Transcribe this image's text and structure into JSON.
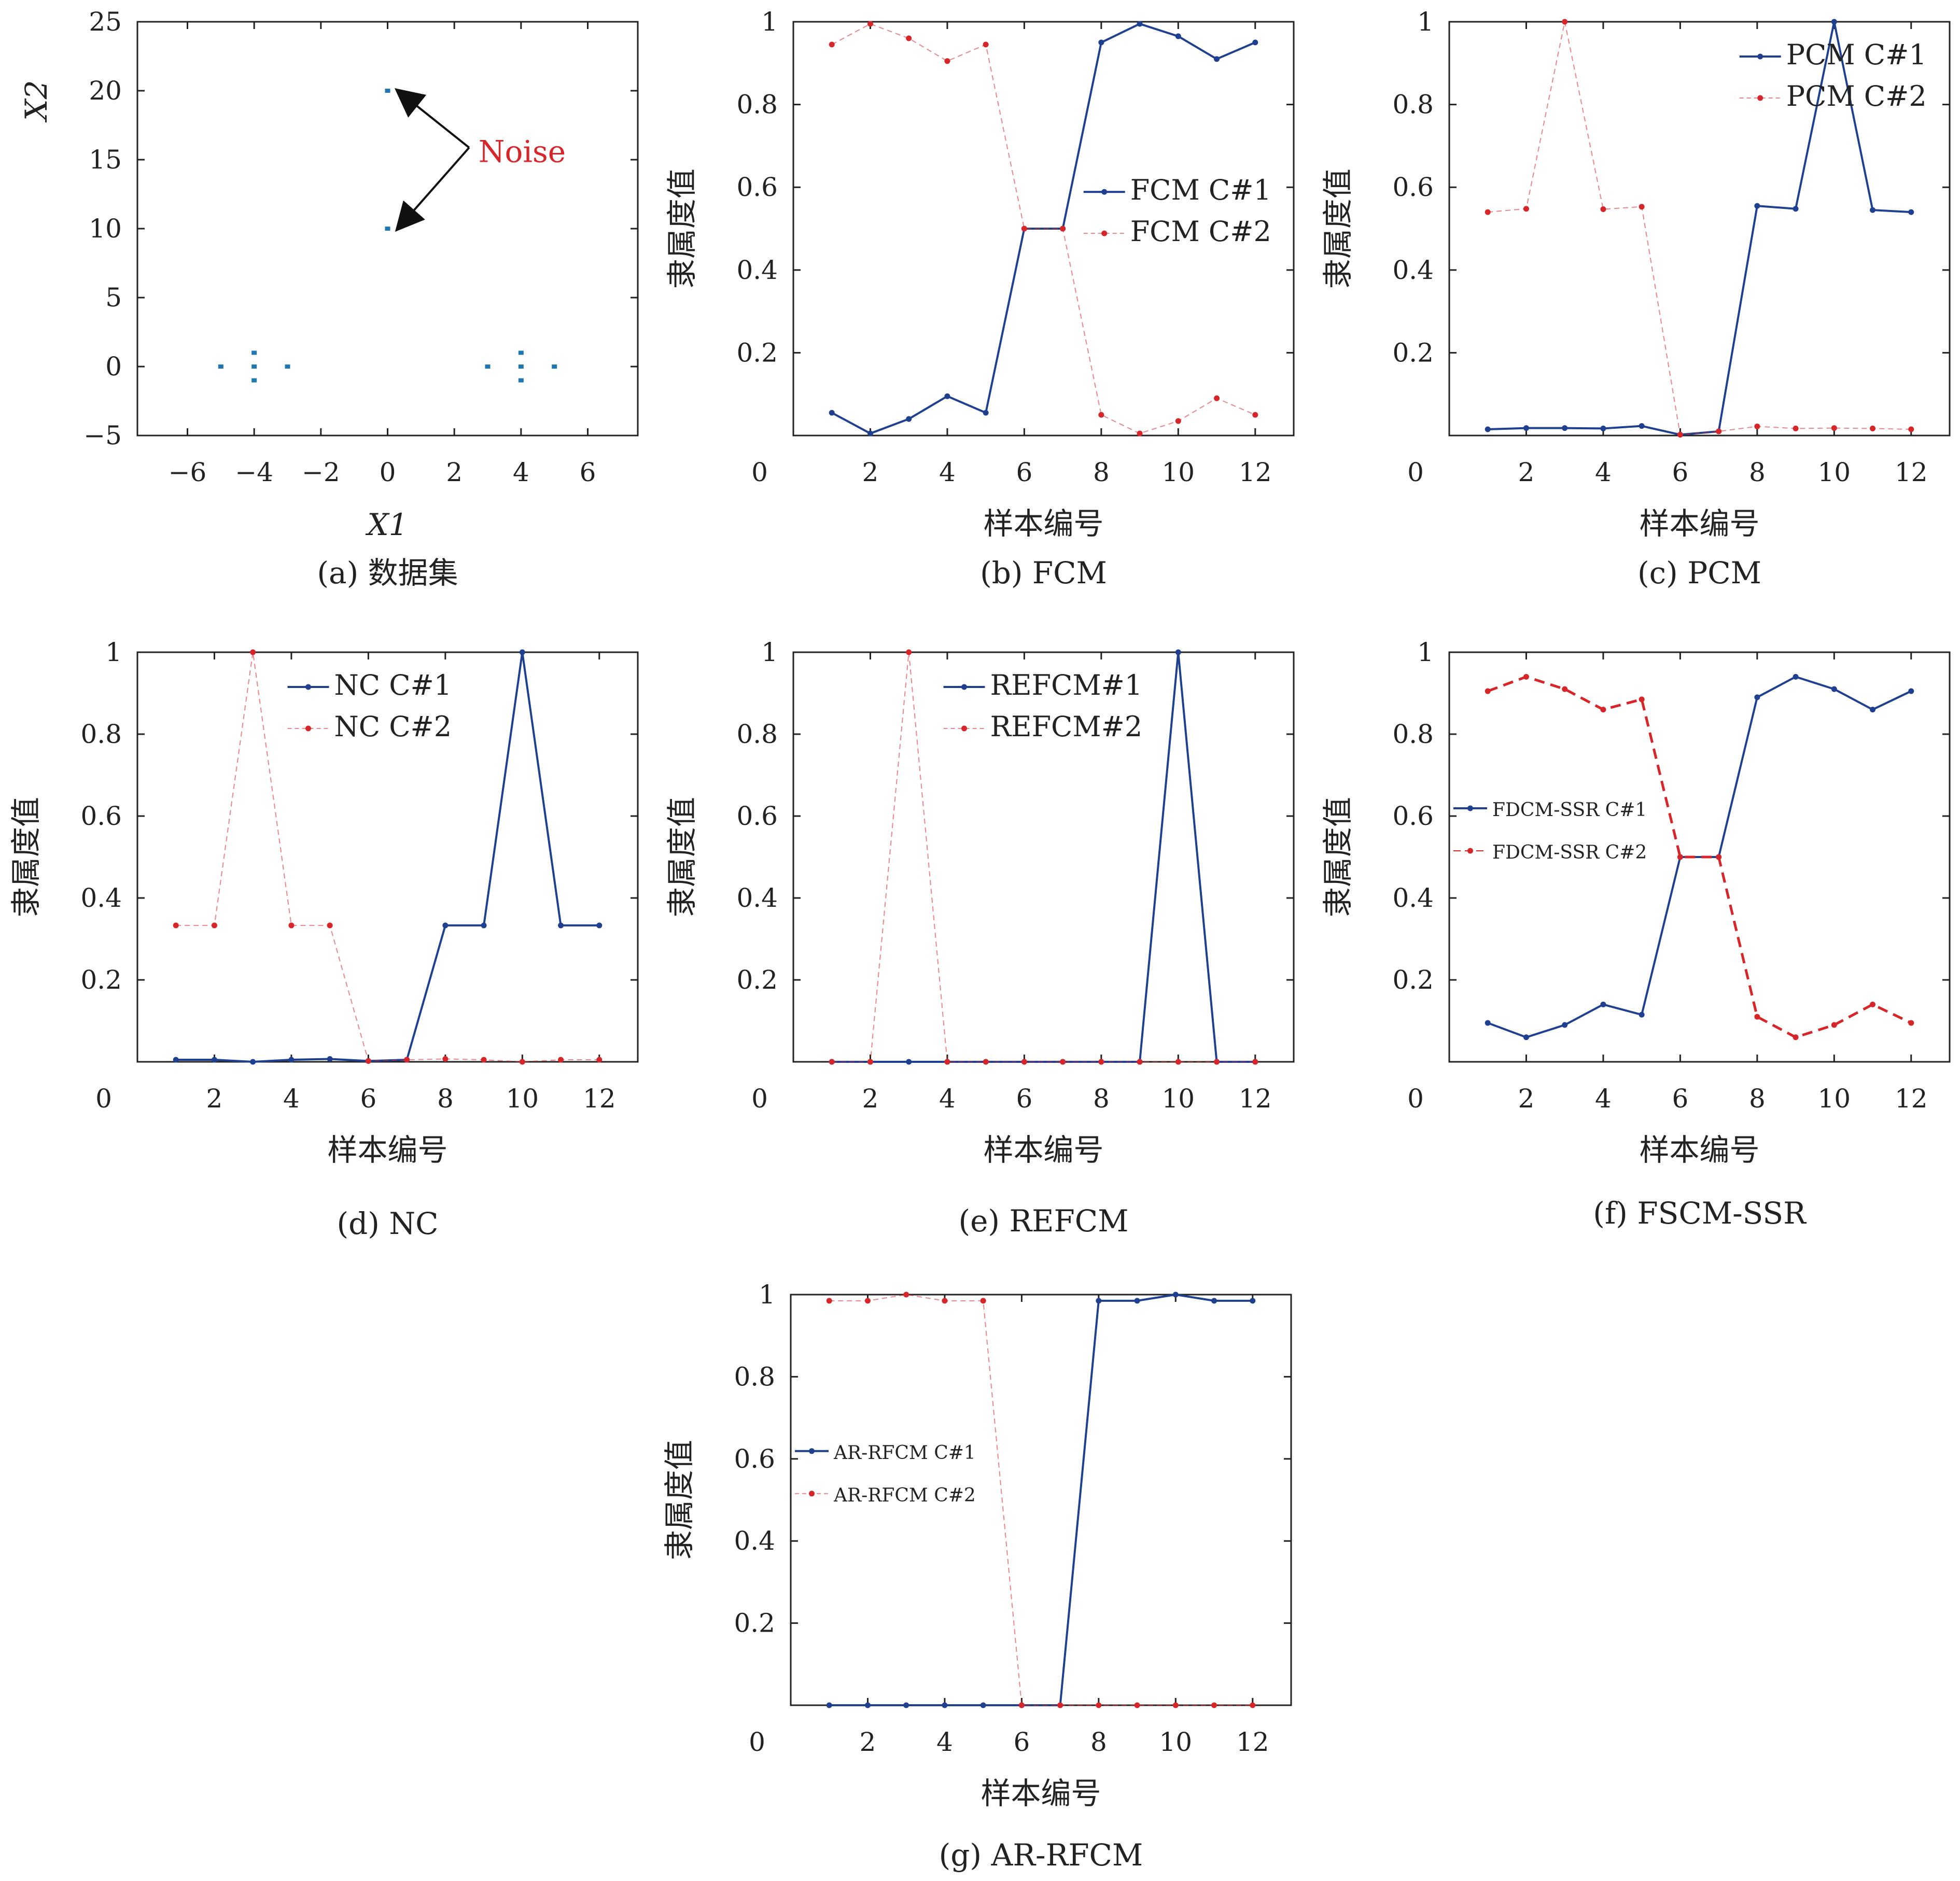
{
  "colors": {
    "c1": "#1f3f8f",
    "c2": "#d6262a",
    "scatter": "#1f77b4"
  },
  "chart_data": [
    {
      "id": "a",
      "type": "scatter",
      "caption": "(a) 数据集",
      "xlabel": "X1",
      "ylabel": "X2",
      "xlim": [
        -7.5,
        7.5
      ],
      "ylim": [
        -5,
        25
      ],
      "xticks": [
        -6,
        -4,
        -2,
        0,
        2,
        4,
        6
      ],
      "yticks": [
        -5,
        0,
        5,
        10,
        15,
        20,
        25
      ],
      "points": [
        [
          -5,
          0
        ],
        [
          -4,
          -1
        ],
        [
          -4,
          0
        ],
        [
          -4,
          1
        ],
        [
          -3,
          0
        ],
        [
          3,
          0
        ],
        [
          4,
          -1
        ],
        [
          4,
          0
        ],
        [
          4,
          1
        ],
        [
          5,
          0
        ],
        [
          0,
          10
        ],
        [
          0,
          20
        ]
      ],
      "annotation": {
        "text": "Noise",
        "anchor": [
          2.6,
          15.5
        ],
        "targets": [
          [
            0.15,
            20
          ],
          [
            0.15,
            10
          ]
        ]
      }
    },
    {
      "id": "b",
      "type": "line",
      "caption": "(b) FCM",
      "xlabel": "样本编号",
      "ylabel": "隶属度值",
      "xlim": [
        0,
        13
      ],
      "ylim": [
        0,
        1
      ],
      "xticks": [
        0,
        2,
        4,
        6,
        8,
        10,
        12
      ],
      "yticks": [
        0.2,
        0.4,
        0.6,
        0.8,
        1.0
      ],
      "legend_pos": "center-right",
      "legend_size": "normal",
      "x": [
        1,
        2,
        3,
        4,
        5,
        6,
        7,
        8,
        9,
        10,
        11,
        12
      ],
      "series": [
        {
          "name": "FCM C#1",
          "style": "solid",
          "values": [
            0.055,
            0.005,
            0.04,
            0.095,
            0.055,
            0.5,
            0.5,
            0.95,
            0.995,
            0.965,
            0.91,
            0.95
          ]
        },
        {
          "name": "FCM C#2",
          "style": "thin-dashed",
          "values": [
            0.945,
            0.995,
            0.96,
            0.905,
            0.945,
            0.5,
            0.5,
            0.05,
            0.005,
            0.035,
            0.09,
            0.05
          ]
        }
      ]
    },
    {
      "id": "c",
      "type": "line",
      "caption": "(c) PCM",
      "xlabel": "样本编号",
      "ylabel": "隶属度值",
      "xlim": [
        0,
        13
      ],
      "ylim": [
        0,
        1
      ],
      "xticks": [
        0,
        2,
        4,
        6,
        8,
        10,
        12
      ],
      "yticks": [
        0.2,
        0.4,
        0.6,
        0.8,
        1.0
      ],
      "legend_pos": "top-right",
      "legend_size": "normal",
      "x": [
        1,
        2,
        3,
        4,
        5,
        6,
        7,
        8,
        9,
        10,
        11,
        12
      ],
      "series": [
        {
          "name": "PCM C#1",
          "style": "solid",
          "values": [
            0.015,
            0.018,
            0.018,
            0.017,
            0.023,
            0.002,
            0.01,
            0.555,
            0.548,
            1.0,
            0.545,
            0.54
          ]
        },
        {
          "name": "PCM C#2",
          "style": "thin-dashed",
          "values": [
            0.54,
            0.548,
            1.0,
            0.547,
            0.553,
            0.002,
            0.01,
            0.022,
            0.017,
            0.018,
            0.017,
            0.015
          ]
        }
      ]
    },
    {
      "id": "d",
      "type": "line",
      "caption": "(d) NC",
      "xlabel": "样本编号",
      "ylabel": "隶属度值",
      "xlim": [
        0,
        13
      ],
      "ylim": [
        0,
        1
      ],
      "xticks": [
        0,
        2,
        4,
        6,
        8,
        10,
        12
      ],
      "yticks": [
        0.2,
        0.4,
        0.6,
        0.8,
        1.0
      ],
      "legend_pos": "top-center",
      "legend_size": "normal",
      "x": [
        1,
        2,
        3,
        4,
        5,
        6,
        7,
        8,
        9,
        10,
        11,
        12
      ],
      "series": [
        {
          "name": "NC C#1",
          "style": "solid",
          "values": [
            0.005,
            0.005,
            0.0,
            0.005,
            0.007,
            0.002,
            0.005,
            0.333,
            0.333,
            1.0,
            0.333,
            0.333
          ]
        },
        {
          "name": "NC C#2",
          "style": "thin-dashed",
          "values": [
            0.333,
            0.333,
            1.0,
            0.333,
            0.333,
            0.002,
            0.005,
            0.007,
            0.005,
            0.0,
            0.005,
            0.005
          ]
        }
      ]
    },
    {
      "id": "e",
      "type": "line",
      "caption": "(e) REFCM",
      "xlabel": "样本编号",
      "ylabel": "隶属度值",
      "xlim": [
        0,
        13
      ],
      "ylim": [
        0,
        1
      ],
      "xticks": [
        0,
        2,
        4,
        6,
        8,
        10,
        12
      ],
      "yticks": [
        0.2,
        0.4,
        0.6,
        0.8,
        1.0
      ],
      "legend_pos": "top-center",
      "legend_size": "normal",
      "x": [
        1,
        2,
        3,
        4,
        5,
        6,
        7,
        8,
        9,
        10,
        11,
        12
      ],
      "series": [
        {
          "name": "REFCM#1",
          "style": "solid",
          "values": [
            0,
            0,
            0,
            0,
            0,
            0,
            0,
            0,
            0,
            1.0,
            0,
            0
          ]
        },
        {
          "name": "REFCM#2",
          "style": "thin-dashed",
          "values": [
            0,
            0,
            1.0,
            0,
            0,
            0,
            0,
            0,
            0,
            0,
            0,
            0
          ]
        }
      ]
    },
    {
      "id": "f",
      "type": "line",
      "caption": "(f) FSCM-SSR",
      "xlabel": "样本编号",
      "ylabel": "隶属度值",
      "xlim": [
        0,
        13
      ],
      "ylim": [
        0,
        1
      ],
      "xticks": [
        0,
        2,
        4,
        6,
        8,
        10,
        12
      ],
      "yticks": [
        0.2,
        0.4,
        0.6,
        0.8,
        1.0
      ],
      "legend_pos": "center-left",
      "legend_size": "small",
      "x": [
        1,
        2,
        3,
        4,
        5,
        6,
        7,
        8,
        9,
        10,
        11,
        12
      ],
      "series": [
        {
          "name": "FDCM-SSR C#1",
          "style": "solid",
          "values": [
            0.095,
            0.06,
            0.09,
            0.14,
            0.115,
            0.5,
            0.5,
            0.89,
            0.94,
            0.91,
            0.86,
            0.905
          ]
        },
        {
          "name": "FDCM-SSR C#2",
          "style": "thick-dashed",
          "values": [
            0.905,
            0.94,
            0.91,
            0.86,
            0.885,
            0.5,
            0.5,
            0.11,
            0.06,
            0.09,
            0.14,
            0.095
          ]
        }
      ]
    },
    {
      "id": "g",
      "type": "line",
      "caption": "(g) AR-RFCM",
      "xlabel": "样本编号",
      "ylabel": "隶属度值",
      "xlim": [
        0,
        13
      ],
      "ylim": [
        0,
        1
      ],
      "xticks": [
        0,
        2,
        4,
        6,
        8,
        10,
        12
      ],
      "yticks": [
        0.2,
        0.4,
        0.6,
        0.8,
        1.0
      ],
      "legend_pos": "center-left",
      "legend_size": "small",
      "x": [
        1,
        2,
        3,
        4,
        5,
        6,
        7,
        8,
        9,
        10,
        11,
        12
      ],
      "series": [
        {
          "name": "AR-RFCM C#1",
          "style": "solid",
          "values": [
            0,
            0,
            0,
            0,
            0,
            0,
            0,
            0.985,
            0.985,
            1.0,
            0.985,
            0.985
          ]
        },
        {
          "name": "AR-RFCM C#2",
          "style": "thin-dashed",
          "values": [
            0.985,
            0.985,
            1.0,
            0.985,
            0.985,
            0,
            0,
            0,
            0,
            0,
            0,
            0
          ]
        }
      ]
    }
  ]
}
